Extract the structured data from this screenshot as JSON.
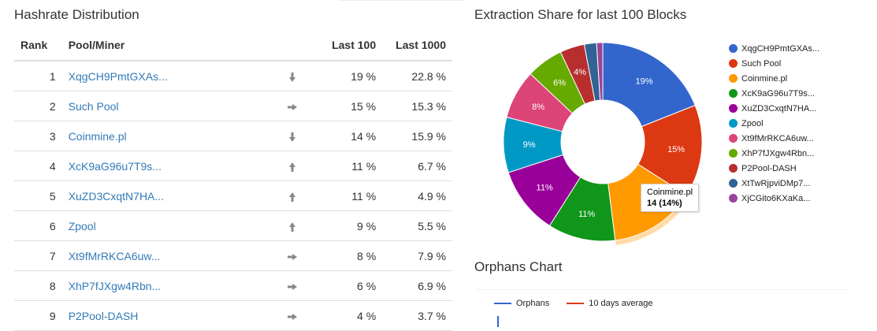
{
  "hashrate": {
    "title": "Hashrate Distribution",
    "columns": {
      "rank": "Rank",
      "pool": "Pool/Miner",
      "last100": "Last 100",
      "last1000": "Last 1000"
    },
    "rows": [
      {
        "rank": "1",
        "pool": "XqgCH9PmtGXAs...",
        "trend": "down",
        "last100": "19 %",
        "last1000": "22.8 %"
      },
      {
        "rank": "2",
        "pool": "Such Pool",
        "trend": "right",
        "last100": "15 %",
        "last1000": "15.3 %"
      },
      {
        "rank": "3",
        "pool": "Coinmine.pl",
        "trend": "down",
        "last100": "14 %",
        "last1000": "15.9 %"
      },
      {
        "rank": "4",
        "pool": "XcK9aG96u7T9s...",
        "trend": "up",
        "last100": "11 %",
        "last1000": "6.7 %"
      },
      {
        "rank": "5",
        "pool": "XuZD3CxqtN7HA...",
        "trend": "up",
        "last100": "11 %",
        "last1000": "4.9 %"
      },
      {
        "rank": "6",
        "pool": "Zpool",
        "trend": "up",
        "last100": "9 %",
        "last1000": "5.5 %"
      },
      {
        "rank": "7",
        "pool": "Xt9fMrRKCA6uw...",
        "trend": "right",
        "last100": "8 %",
        "last1000": "7.9 %"
      },
      {
        "rank": "8",
        "pool": "XhP7fJXgw4Rbn...",
        "trend": "right",
        "last100": "6 %",
        "last1000": "6.9 %"
      },
      {
        "rank": "9",
        "pool": "P2Pool-DASH",
        "trend": "right",
        "last100": "4 %",
        "last1000": "3.7 %"
      }
    ]
  },
  "extraction": {
    "title": "Extraction Share for last 100 Blocks"
  },
  "orphans": {
    "title": "Orphans Chart",
    "legend": [
      {
        "label": "Orphans",
        "color": "#3366cc"
      },
      {
        "label": "10 days average",
        "color": "#dc3912"
      }
    ]
  },
  "tooltip": {
    "name": "Coinmine.pl",
    "value": "14 (14%)"
  },
  "chart_data": {
    "type": "pie",
    "title": "Extraction Share for last 100 Blocks",
    "donut": true,
    "legend_position": "right",
    "slices": [
      {
        "label": "XqgCH9PmtGXAs...",
        "value": 19,
        "pct_label": "19%",
        "color": "#3366cc"
      },
      {
        "label": "Such Pool",
        "value": 15,
        "pct_label": "15%",
        "color": "#dc3912"
      },
      {
        "label": "Coinmine.pl",
        "value": 14,
        "pct_label": "",
        "color": "#ff9900"
      },
      {
        "label": "XcK9aG96u7T9s...",
        "value": 11,
        "pct_label": "11%",
        "color": "#109618"
      },
      {
        "label": "XuZD3CxqtN7HA...",
        "value": 11,
        "pct_label": "11%",
        "color": "#990099"
      },
      {
        "label": "Zpool",
        "value": 9,
        "pct_label": "9%",
        "color": "#0099c6"
      },
      {
        "label": "Xt9fMrRKCA6uw...",
        "value": 8,
        "pct_label": "8%",
        "color": "#dd4477"
      },
      {
        "label": "XhP7fJXgw4Rbn...",
        "value": 6,
        "pct_label": "6%",
        "color": "#66aa00"
      },
      {
        "label": "P2Pool-DASH",
        "value": 4,
        "pct_label": "4%",
        "color": "#b82e2e"
      },
      {
        "label": "XtTwRjpviDMp7...",
        "value": 2,
        "pct_label": "",
        "color": "#316395"
      },
      {
        "label": "XjCGito6KXaKa...",
        "value": 1,
        "pct_label": "",
        "color": "#994499"
      }
    ]
  }
}
